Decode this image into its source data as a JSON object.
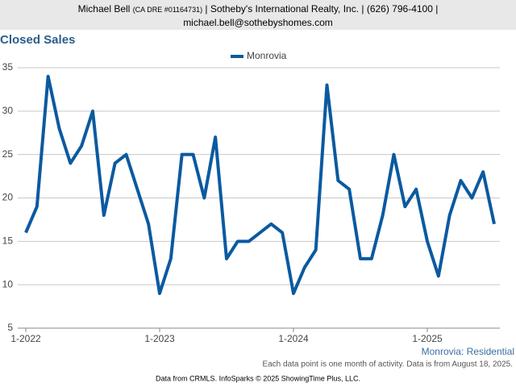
{
  "header": {
    "name": "Michael Bell",
    "license": "(CA DRE #01164731)",
    "details": "| Sotheby's International Realty, Inc. | (626) 796-4100 |",
    "email": "michael.bell@sothebyshomes.com"
  },
  "chart_data": {
    "type": "line",
    "title": "Closed Sales",
    "categories": [
      "1-2022",
      null,
      null,
      null,
      null,
      null,
      null,
      null,
      null,
      null,
      null,
      null,
      "1-2023",
      null,
      null,
      null,
      null,
      null,
      null,
      null,
      null,
      null,
      null,
      null,
      "1-2024",
      null,
      null,
      null,
      null,
      null,
      null,
      null,
      null,
      null,
      null,
      null,
      "1-2025",
      null,
      null,
      null,
      null,
      null,
      null
    ],
    "series": [
      {
        "name": "Monrovia",
        "color": "#0a5aa0",
        "values": [
          16,
          19,
          34,
          28,
          24,
          26,
          30,
          18,
          24,
          25,
          21,
          17,
          9,
          13,
          25,
          25,
          20,
          27,
          13,
          15,
          15,
          16,
          17,
          16,
          9,
          12,
          14,
          33,
          22,
          21,
          13,
          13,
          18,
          25,
          19,
          21,
          15,
          11,
          18,
          22,
          20,
          23,
          17
        ]
      }
    ],
    "ylim": [
      5,
      35
    ],
    "yticks": [
      5,
      10,
      15,
      20,
      25,
      30,
      35
    ],
    "grid": true,
    "legend": "top",
    "subtitle": "Monrovia: Residential",
    "note": "Each data point is one month of activity. Data is from August 18, 2025.",
    "source": "Data from CRMLS. InfoSparks © 2025 ShowingTime Plus, LLC."
  }
}
